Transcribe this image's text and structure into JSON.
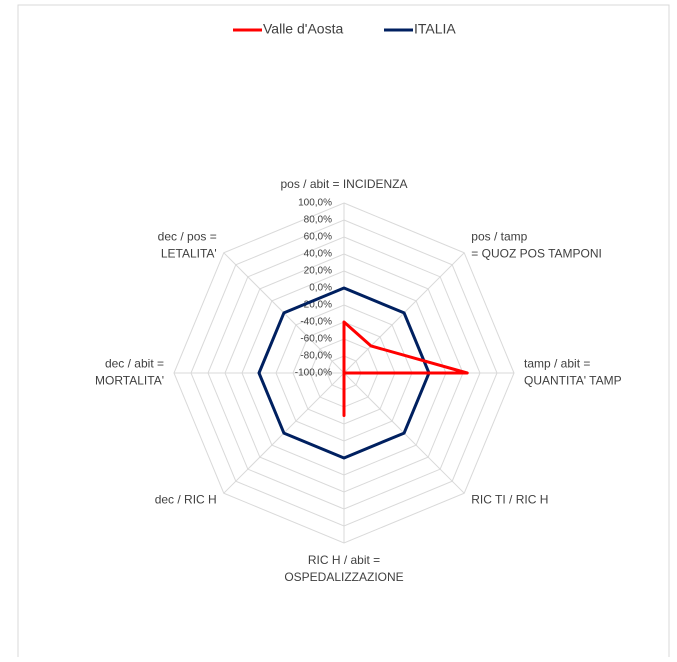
{
  "chart_data": {
    "type": "radar",
    "categories": [
      [
        "pos / abit = INCIDENZA"
      ],
      [
        "pos / tamp",
        "= QUOZ POS TAMPONI"
      ],
      [
        "tamp / abit =",
        "QUANTITA' TAMP"
      ],
      [
        "RIC TI / RIC H"
      ],
      [
        "RIC H / abit =",
        "OSPEDALIZZAZIONE"
      ],
      [
        "dec  / RIC H"
      ],
      [
        "dec / abit =",
        "MORTALITA'"
      ],
      [
        "dec / pos =",
        "LETALITA'"
      ]
    ],
    "series": [
      {
        "name": "Valle d'Aosta",
        "color": "#ff0000",
        "values": [
          -40,
          -55,
          45,
          -100,
          -50,
          -100,
          -100,
          -100
        ]
      },
      {
        "name": "ITALIA",
        "color": "#002060",
        "values": [
          0,
          0,
          0,
          0,
          0,
          0,
          0,
          0
        ]
      }
    ],
    "ylim": [
      -100,
      100
    ],
    "yticks": [
      {
        "value": -100,
        "label": "-100,0%"
      },
      {
        "value": -80,
        "label": "-80,0%"
      },
      {
        "value": -60,
        "label": "-60,0%"
      },
      {
        "value": -40,
        "label": "-40,0%"
      },
      {
        "value": -20,
        "label": "-20,0%"
      },
      {
        "value": 0,
        "label": "0,0%"
      },
      {
        "value": 20,
        "label": "20,0%"
      },
      {
        "value": 40,
        "label": "40,0%"
      },
      {
        "value": 60,
        "label": "60,0%"
      },
      {
        "value": 80,
        "label": "80,0%"
      },
      {
        "value": 100,
        "label": "100,0%"
      }
    ],
    "legend": "top",
    "grid": true
  }
}
